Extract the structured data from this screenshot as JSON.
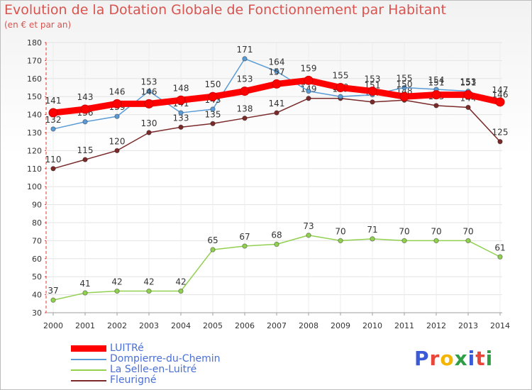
{
  "header": {
    "title": "Evolution de la Dotation Globale de Fonctionnement par Habitant",
    "subtitle": "(en € et par an)"
  },
  "logo": {
    "text": "Proxiti",
    "colors": [
      "#3b5bd6",
      "#e8463b",
      "#f4b400",
      "#2f9e44",
      "#3b5bd6",
      "#e8463b",
      "#2f9e44"
    ]
  },
  "chart_data": {
    "type": "line",
    "title": "Evolution de la Dotation Globale de Fonctionnement par Habitant",
    "subtitle": "(en € et par an)",
    "xlabel": "",
    "ylabel": "",
    "categories": [
      "2000",
      "2001",
      "2002",
      "2003",
      "2004",
      "2005",
      "2006",
      "2007",
      "2008",
      "2009",
      "2010",
      "2011",
      "2012",
      "2013",
      "2014"
    ],
    "ylim": [
      30,
      180
    ],
    "yticks": [
      30,
      40,
      50,
      60,
      70,
      80,
      90,
      100,
      110,
      120,
      130,
      140,
      150,
      160,
      170,
      180
    ],
    "grid": true,
    "legend_position": "bottom-left",
    "series": [
      {
        "name": "Dompierre-du-Chemin",
        "color": "#5b9bd5",
        "values": [
          132,
          136,
          139,
          153,
          141,
          143,
          171,
          164,
          153,
          150,
          151,
          155,
          154,
          153,
          146
        ],
        "labels": [
          "132",
          "136",
          "139",
          "153",
          "141",
          "143",
          "171",
          "164",
          "153",
          "150",
          "151",
          "155",
          "154",
          "153",
          "146"
        ]
      },
      {
        "name": "La Selle-en-Luitré",
        "color": "#92d050",
        "values": [
          37,
          41,
          42,
          42,
          42,
          65,
          67,
          68,
          73,
          70,
          71,
          70,
          70,
          70,
          61
        ],
        "labels": [
          "37",
          "41",
          "42",
          "42",
          "42",
          "65",
          "67",
          "68",
          "73",
          "70",
          "71",
          "70",
          "70",
          "70",
          "61"
        ]
      },
      {
        "name": "Fleurigné",
        "color": "#7b2a2a",
        "values": [
          110,
          115,
          120,
          130,
          133,
          135,
          138,
          141,
          149,
          149,
          147,
          148,
          145,
          144,
          125
        ],
        "labels": [
          "110",
          "115",
          "120",
          "130",
          "133",
          "135",
          "138",
          "141",
          "149",
          "149",
          "147",
          "148",
          "145",
          "144",
          "125"
        ]
      },
      {
        "name": "LUITRé",
        "color": "#ff0000",
        "values": [
          141,
          143,
          146,
          146,
          148,
          150,
          153,
          157,
          159,
          155,
          153,
          150,
          151,
          151,
          147
        ],
        "labels": [
          "141",
          "143",
          "146",
          "146",
          "148",
          "150",
          "153",
          "157",
          "159",
          "155",
          "153",
          "150",
          "151",
          "151",
          "147"
        ]
      }
    ],
    "legend_order": [
      "LUITRé",
      "Dompierre-du-Chemin",
      "La Selle-en-Luitré",
      "Fleurigné"
    ]
  }
}
